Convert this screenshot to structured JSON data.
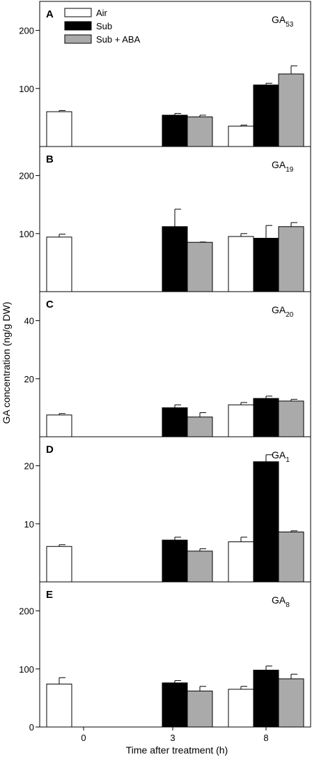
{
  "chart_data": {
    "type": "bar",
    "xlabel": "Time after treatment (h)",
    "ylabel": "GA concentration (ng/g DW)",
    "categories": [
      "0",
      "3",
      "8"
    ],
    "legend": {
      "position": "top-left",
      "entries": [
        {
          "name": "Air",
          "color": "#ffffff"
        },
        {
          "name": "Sub",
          "color": "#000000"
        },
        {
          "name": "Sub + ABA",
          "color": "#aaaaaa"
        }
      ]
    },
    "panels": [
      {
        "letter": "A",
        "compound": "GA",
        "subscript": "53",
        "ylim": [
          0,
          250
        ],
        "yticks": [
          100,
          200
        ],
        "series": [
          {
            "name": "Air",
            "values": [
              60,
              null,
              35
            ],
            "errors": [
              2,
              null,
              2
            ]
          },
          {
            "name": "Sub",
            "values": [
              null,
              54,
              106
            ],
            "errors": [
              null,
              3,
              3
            ]
          },
          {
            "name": "Sub + ABA",
            "values": [
              null,
              51,
              125
            ],
            "errors": [
              null,
              3,
              14
            ]
          }
        ]
      },
      {
        "letter": "B",
        "compound": "GA",
        "subscript": "19",
        "ylim": [
          0,
          250
        ],
        "yticks": [
          100,
          200
        ],
        "series": [
          {
            "name": "Air",
            "values": [
              94,
              null,
              95
            ],
            "errors": [
              5,
              null,
              5
            ]
          },
          {
            "name": "Sub",
            "values": [
              null,
              112,
              92
            ],
            "errors": [
              null,
              30,
              22
            ]
          },
          {
            "name": "Sub + ABA",
            "values": [
              null,
              85,
              112
            ],
            "errors": [
              null,
              0.5,
              7
            ]
          }
        ]
      },
      {
        "letter": "C",
        "compound": "GA",
        "subscript": "20",
        "ylim": [
          0,
          50
        ],
        "yticks": [
          20,
          40
        ],
        "series": [
          {
            "name": "Air",
            "values": [
              7.5,
              null,
              11
            ],
            "errors": [
              0.5,
              null,
              0.8
            ]
          },
          {
            "name": "Sub",
            "values": [
              null,
              10,
              13.2
            ],
            "errors": [
              null,
              1,
              0.8
            ]
          },
          {
            "name": "Sub + ABA",
            "values": [
              null,
              6.8,
              12.3
            ],
            "errors": [
              null,
              1.5,
              0.6
            ]
          }
        ]
      },
      {
        "letter": "D",
        "compound": "GA",
        "subscript": "1",
        "ylim": [
          0,
          25
        ],
        "yticks": [
          10,
          20
        ],
        "series": [
          {
            "name": "Air",
            "values": [
              6.1,
              null,
              6.9
            ],
            "errors": [
              0.3,
              null,
              0.8
            ]
          },
          {
            "name": "Sub",
            "values": [
              null,
              7.2,
              20.7
            ],
            "errors": [
              null,
              0.5,
              1.2
            ]
          },
          {
            "name": "Sub + ABA",
            "values": [
              null,
              5.3,
              8.6
            ],
            "errors": [
              null,
              0.4,
              0.2
            ]
          }
        ]
      },
      {
        "letter": "E",
        "compound": "GA",
        "subscript": "8",
        "ylim": [
          0,
          250
        ],
        "yticks": [
          0,
          100,
          200
        ],
        "series": [
          {
            "name": "Air",
            "values": [
              74,
              null,
              65
            ],
            "errors": [
              11,
              null,
              5
            ]
          },
          {
            "name": "Sub",
            "values": [
              null,
              76,
              98
            ],
            "errors": [
              null,
              4,
              7
            ]
          },
          {
            "name": "Sub + ABA",
            "values": [
              null,
              62,
              83
            ],
            "errors": [
              null,
              8,
              8
            ]
          }
        ]
      }
    ]
  }
}
